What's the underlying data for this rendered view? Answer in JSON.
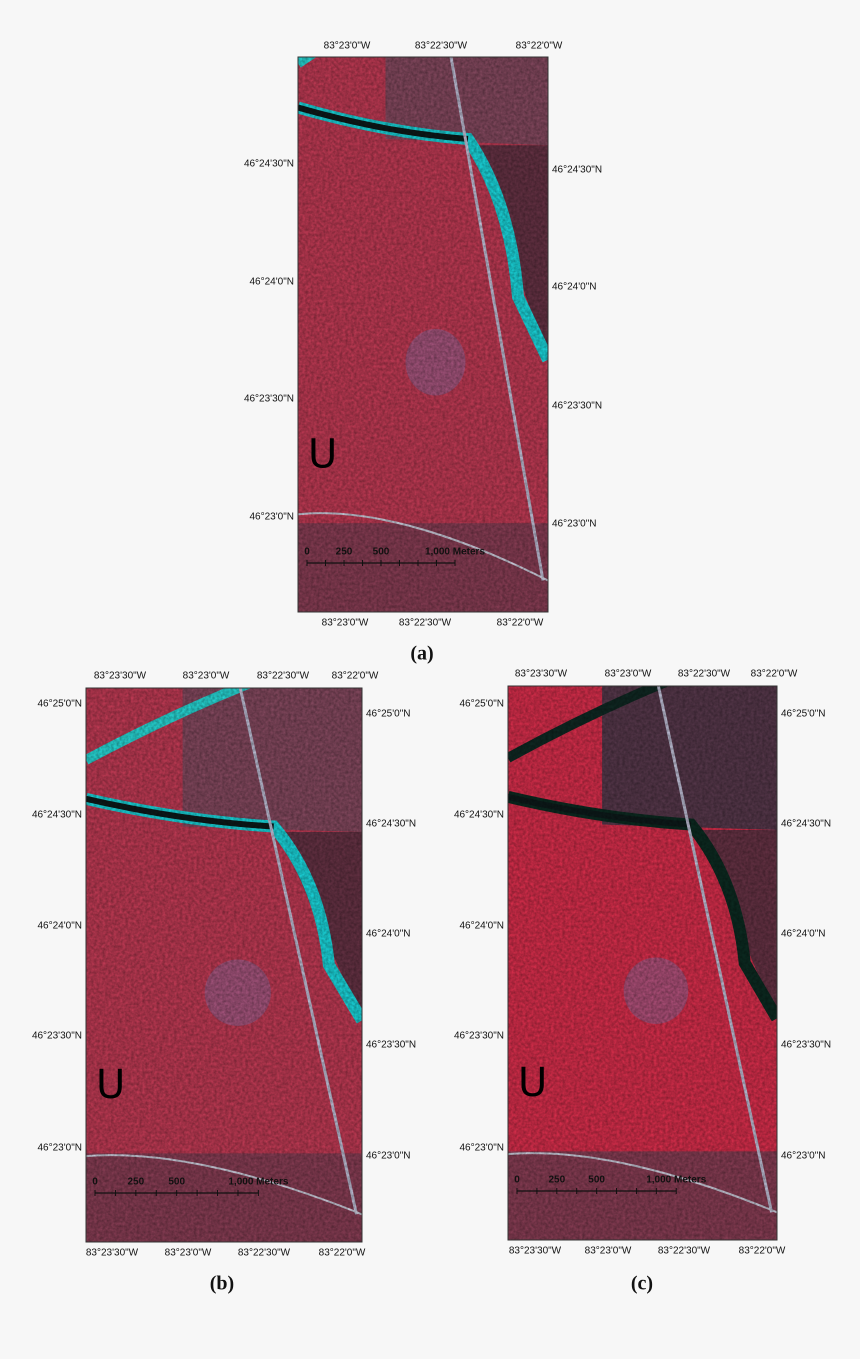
{
  "panels": [
    {
      "caption": "(a)",
      "top_labels": [
        "83°23'0\"W",
        "83°22'30\"W",
        "83°22'0\"W"
      ],
      "bottom_labels": [
        "83°23'0\"W",
        "83°22'30\"W",
        "83°22'0\"W"
      ],
      "left_labels": [
        "46°24'30\"N",
        "46°24'0\"N",
        "46°23'30\"N",
        "46°23'0\"N"
      ],
      "right_labels": [
        "46°24'30\"N",
        "46°24'0\"N",
        "46°23'30\"N",
        "46°23'0\"N"
      ],
      "scale_labels": [
        "0",
        "250",
        "500",
        "1,000 Meters"
      ],
      "marker": "U"
    },
    {
      "caption": "(b)",
      "top_labels": [
        "83°23'30\"W",
        "83°23'0\"W",
        "83°22'30\"W",
        "83°22'0\"W"
      ],
      "bottom_labels": [
        "83°23'30\"W",
        "83°23'0\"W",
        "83°22'30\"W",
        "83°22'0\"W"
      ],
      "left_labels": [
        "46°25'0\"N",
        "46°24'30\"N",
        "46°24'0\"N",
        "46°23'30\"N",
        "46°23'0\"N"
      ],
      "right_labels": [
        "46°25'0\"N",
        "46°24'30\"N",
        "46°24'0\"N",
        "46°23'30\"N",
        "46°23'0\"N"
      ],
      "scale_labels": [
        "0",
        "250",
        "500",
        "1,000 Meters"
      ],
      "marker": "U"
    },
    {
      "caption": "(c)",
      "top_labels": [
        "83°23'30\"W",
        "83°23'0\"W",
        "83°22'30\"W",
        "83°22'0\"W"
      ],
      "bottom_labels": [
        "83°23'30\"W",
        "83°23'0\"W",
        "83°22'30\"W",
        "83°22'0\"W"
      ],
      "left_labels": [
        "46°25'0\"N",
        "46°24'30\"N",
        "46°24'0\"N",
        "46°23'30\"N",
        "46°23'0\"N"
      ],
      "right_labels": [
        "46°25'0\"N",
        "46°24'30\"N",
        "46°24'0\"N",
        "46°23'30\"N",
        "46°23'0\"N"
      ],
      "scale_labels": [
        "0",
        "250",
        "500",
        "1,000 Meters"
      ],
      "marker": "U"
    }
  ]
}
